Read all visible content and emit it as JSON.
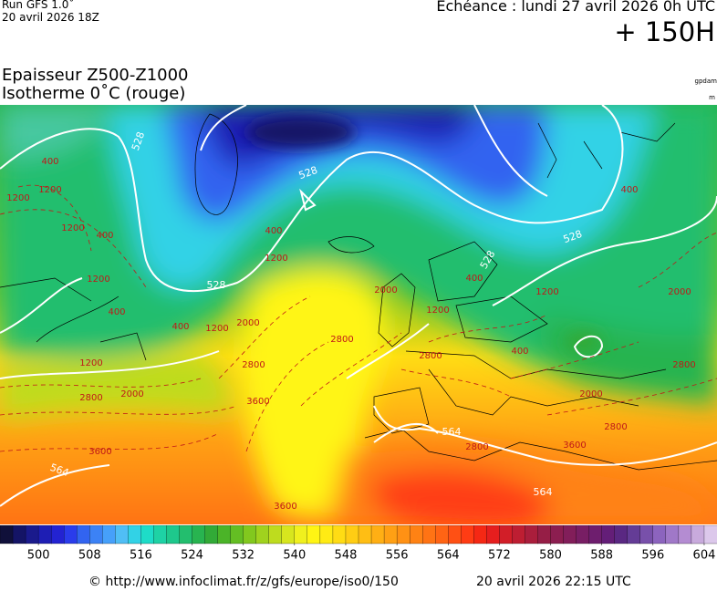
{
  "header": {
    "run": "Run GFS 1.0˚",
    "run_date": "20 avril 2026 18Z",
    "valid": "Echéance : lundi 27 avril 2026 0h UTC",
    "lead": "+ 150H",
    "title": "Epaisseur Z500-Z1000",
    "subtitle": "Isotherme 0˚C (rouge)",
    "unit_thickness": "gpdam",
    "unit_isotherm": "m"
  },
  "map": {
    "thickness_labels": [
      "528",
      "528",
      "528",
      "528",
      "528",
      "564",
      "564",
      "564"
    ],
    "isotherm_labels": [
      "400",
      "1200",
      "1200",
      "400",
      "1200",
      "1200",
      "400",
      "400",
      "1200",
      "1200",
      "400",
      "2000",
      "2800",
      "3600",
      "2800",
      "2000",
      "1200",
      "400",
      "1200",
      "400",
      "400",
      "2000",
      "2800",
      "2800",
      "2000",
      "2800",
      "3600",
      "2000",
      "2800",
      "1200",
      "3600",
      "3600",
      "2800"
    ]
  },
  "colorbar": {
    "lim": [
      494,
      606
    ],
    "ticks": [
      500,
      508,
      516,
      524,
      532,
      540,
      548,
      556,
      564,
      572,
      580,
      588,
      596,
      604
    ],
    "colors": [
      "#10103a",
      "#141466",
      "#1a1a8c",
      "#1e1eb4",
      "#2323d2",
      "#2a3ceb",
      "#3264f0",
      "#3c82f5",
      "#46a0fa",
      "#50bef5",
      "#32d2e6",
      "#1edcc8",
      "#1ed2a5",
      "#1ec88c",
      "#23be6e",
      "#28b450",
      "#32aa37",
      "#4bb428",
      "#64be23",
      "#82c81e",
      "#a0d21e",
      "#bedc1e",
      "#d7e61e",
      "#f0f01e",
      "#fff514",
      "#ffeb14",
      "#ffdc14",
      "#ffcd14",
      "#ffbe14",
      "#ffaf14",
      "#ffa014",
      "#ff9114",
      "#ff8214",
      "#ff7314",
      "#ff6414",
      "#ff5014",
      "#ff3c14",
      "#f52814",
      "#e61e1e",
      "#d21e28",
      "#be1e32",
      "#aa1e3c",
      "#961e46",
      "#8c1e50",
      "#821e5a",
      "#781e64",
      "#6e1e6e",
      "#641e78",
      "#5a2882",
      "#643c96",
      "#7850aa",
      "#8c64be",
      "#a078c8",
      "#b48cd2",
      "#c8aadc",
      "#dcc8eb"
    ]
  },
  "footer": {
    "source": "© http://www.infoclimat.fr/z/gfs/europe/iso0/150",
    "issued": "20 avril 2026 22:15 UTC"
  }
}
